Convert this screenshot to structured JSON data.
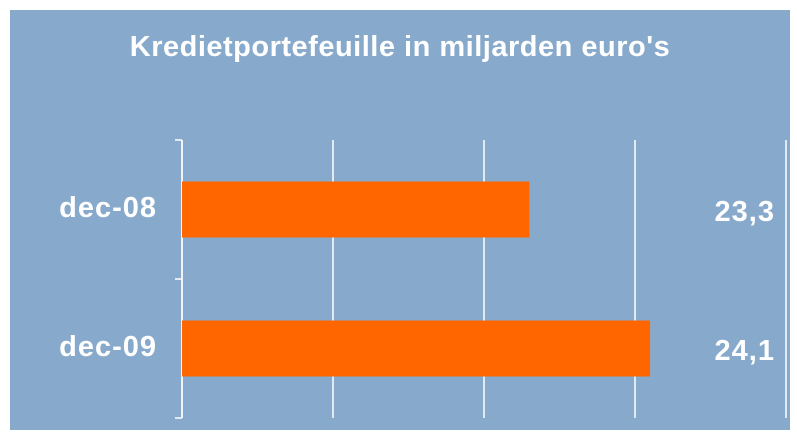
{
  "chart_data": {
    "type": "bar",
    "orientation": "horizontal",
    "title": "Kredietportefeuille in miljarden euro's",
    "categories": [
      "dec-08",
      "dec-09"
    ],
    "values": [
      23.3,
      24.1
    ],
    "value_labels": [
      "23,3",
      "24,1"
    ],
    "color": "#ff6600",
    "xlim": [
      21,
      25
    ],
    "xticks": [
      21,
      22,
      23,
      24,
      25
    ],
    "grid": true
  }
}
